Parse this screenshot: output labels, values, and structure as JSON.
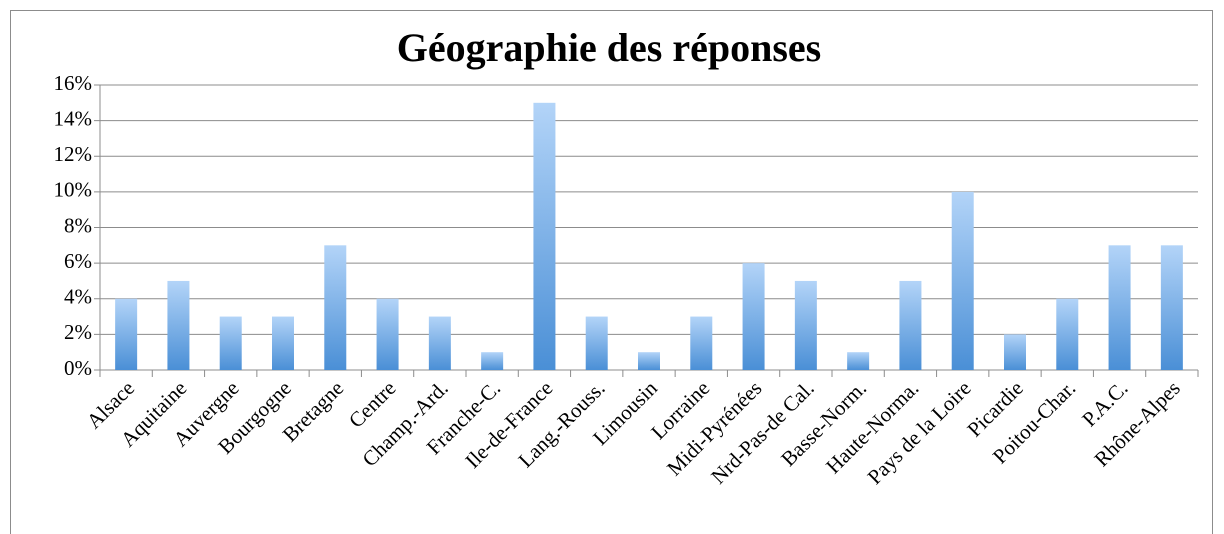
{
  "chart_data": {
    "type": "bar",
    "title": "Géographie des réponses",
    "categories": [
      "Alsace",
      "Aquitaine",
      "Auvergne",
      "Bourgogne",
      "Bretagne",
      "Centre",
      "Champ.-Ard.",
      "Franche-C.",
      "Ile-de-France",
      "Lang.-Rouss.",
      "Limousin",
      "Lorraine",
      "Midi-Pyrénées",
      "Nrd-Pas-de Cal.",
      "Basse-Norm.",
      "Haute-Norma.",
      "Pays de la Loire",
      "Picardie",
      "Poitou-Char.",
      "P.A.C.",
      "Rhône-Alpes"
    ],
    "values": [
      4,
      5,
      3,
      3,
      7,
      4,
      3,
      1,
      15,
      3,
      1,
      3,
      6,
      5,
      1,
      5,
      10,
      2,
      4,
      7,
      7
    ],
    "color": "#4a8fd6",
    "ylim": [
      0,
      16
    ],
    "yticks": [
      {
        "value": 0,
        "label": "0%"
      },
      {
        "value": 2,
        "label": "2%"
      },
      {
        "value": 4,
        "label": "4%"
      },
      {
        "value": 6,
        "label": "6%"
      },
      {
        "value": 8,
        "label": "8%"
      },
      {
        "value": 10,
        "label": "10%"
      },
      {
        "value": 12,
        "label": "12%"
      },
      {
        "value": 14,
        "label": "14%"
      },
      {
        "value": 16,
        "label": "16%"
      }
    ],
    "grid": true
  }
}
